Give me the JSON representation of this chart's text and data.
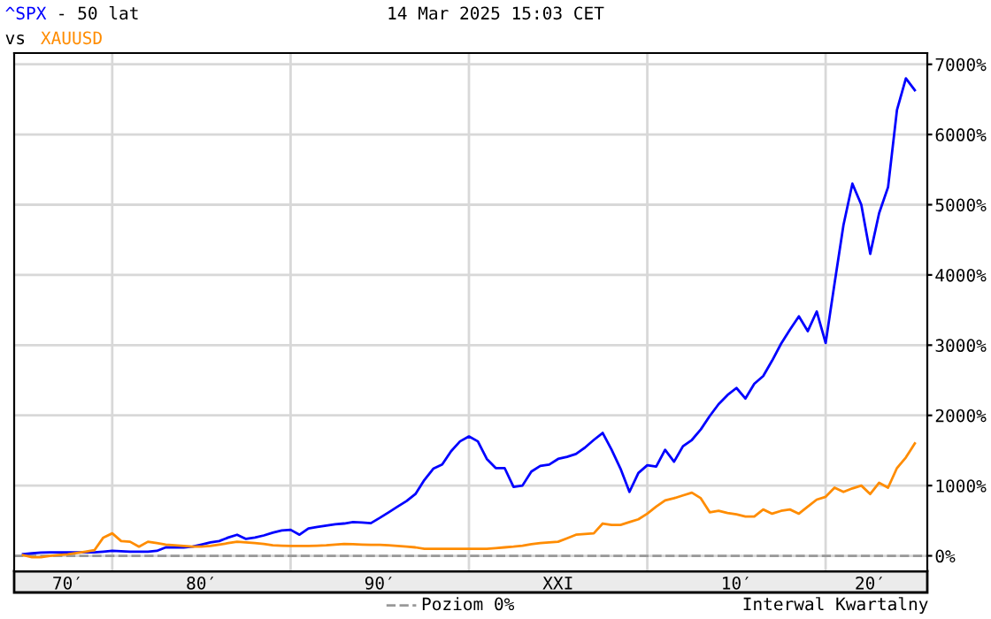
{
  "chart_data": {
    "type": "line",
    "title": "- 50 lat",
    "subtitle": "vs",
    "annotations": [
      "14 Mar 2025 15:03 CET",
      "Interwal Kwartalny"
    ],
    "legend": "bottom",
    "grid": true,
    "marker": "none",
    "line_style": "solid",
    "ylim": [
      -220,
      7160
    ],
    "yticks": [
      {
        "value": 0,
        "label": "0%"
      },
      {
        "value": 1000,
        "label": "1000%"
      },
      {
        "value": 2000,
        "label": "2000%"
      },
      {
        "value": 3000,
        "label": "3000%"
      },
      {
        "value": 4000,
        "label": "4000%"
      },
      {
        "value": 5000,
        "label": "5000%"
      },
      {
        "value": 6000,
        "label": "6000%"
      },
      {
        "value": 7000,
        "label": "7000%"
      }
    ],
    "ref_lines": [
      {
        "axis": "y",
        "value": 0,
        "label": "Poziom 0%",
        "color": "#999999",
        "line_style": "dashed"
      }
    ],
    "categories": [
      null,
      null,
      null,
      null,
      null,
      "70′",
      null,
      null,
      null,
      null,
      null,
      null,
      null,
      null,
      null,
      null,
      null,
      null,
      null,
      null,
      "80′",
      null,
      null,
      null,
      null,
      null,
      null,
      null,
      null,
      null,
      null,
      null,
      null,
      null,
      null,
      null,
      null,
      null,
      null,
      null,
      "90′",
      null,
      null,
      null,
      null,
      null,
      null,
      null,
      null,
      null,
      null,
      null,
      null,
      null,
      null,
      null,
      null,
      null,
      null,
      null,
      "XXI",
      null,
      null,
      null,
      null,
      null,
      null,
      null,
      null,
      null,
      null,
      null,
      null,
      null,
      null,
      null,
      null,
      null,
      null,
      null,
      "10′",
      null,
      null,
      null,
      null,
      null,
      null,
      null,
      null,
      null,
      null,
      null,
      null,
      null,
      null,
      "20′",
      null,
      null,
      null,
      null,
      null
    ],
    "series": [
      {
        "name": "^SPX",
        "color": "#0000ff",
        "values": [
          25,
          35,
          45,
          50,
          50,
          50,
          50,
          50,
          50,
          60,
          70,
          65,
          60,
          60,
          60,
          70,
          120,
          120,
          120,
          130,
          160,
          190,
          210,
          260,
          300,
          240,
          260,
          290,
          330,
          360,
          370,
          300,
          390,
          410,
          430,
          450,
          460,
          480,
          475,
          465,
          540,
          620,
          700,
          780,
          880,
          1080,
          1240,
          1300,
          1490,
          1630,
          1700,
          1630,
          1380,
          1250,
          1250,
          980,
          1000,
          1200,
          1280,
          1300,
          1380,
          1410,
          1450,
          1540,
          1650,
          1750,
          1510,
          1240,
          910,
          1180,
          1290,
          1270,
          1510,
          1340,
          1560,
          1650,
          1800,
          1990,
          2160,
          2290,
          2390,
          2240,
          2450,
          2560,
          2780,
          3020,
          3220,
          3410,
          3200,
          3480,
          3030,
          3880,
          4710,
          5300,
          5000,
          4300,
          4880,
          5250,
          6350,
          6800,
          6630
        ]
      },
      {
        "name": "XAUUSD",
        "color": "#ff8c00",
        "values": [
          10,
          -20,
          -20,
          0,
          10,
          20,
          40,
          60,
          80,
          260,
          320,
          210,
          200,
          130,
          200,
          180,
          160,
          150,
          140,
          130,
          130,
          140,
          160,
          180,
          200,
          190,
          180,
          170,
          150,
          145,
          140,
          140,
          140,
          145,
          150,
          160,
          170,
          165,
          160,
          155,
          155,
          150,
          140,
          130,
          120,
          100,
          100,
          100,
          100,
          100,
          100,
          100,
          100,
          110,
          120,
          130,
          145,
          165,
          180,
          190,
          200,
          250,
          300,
          310,
          320,
          460,
          440,
          440,
          480,
          520,
          600,
          700,
          790,
          820,
          860,
          900,
          820,
          620,
          640,
          610,
          590,
          560,
          560,
          660,
          600,
          640,
          660,
          600,
          700,
          800,
          840,
          970,
          910,
          960,
          1000,
          880,
          1040,
          970,
          1250,
          1400,
          1600
        ]
      }
    ]
  }
}
